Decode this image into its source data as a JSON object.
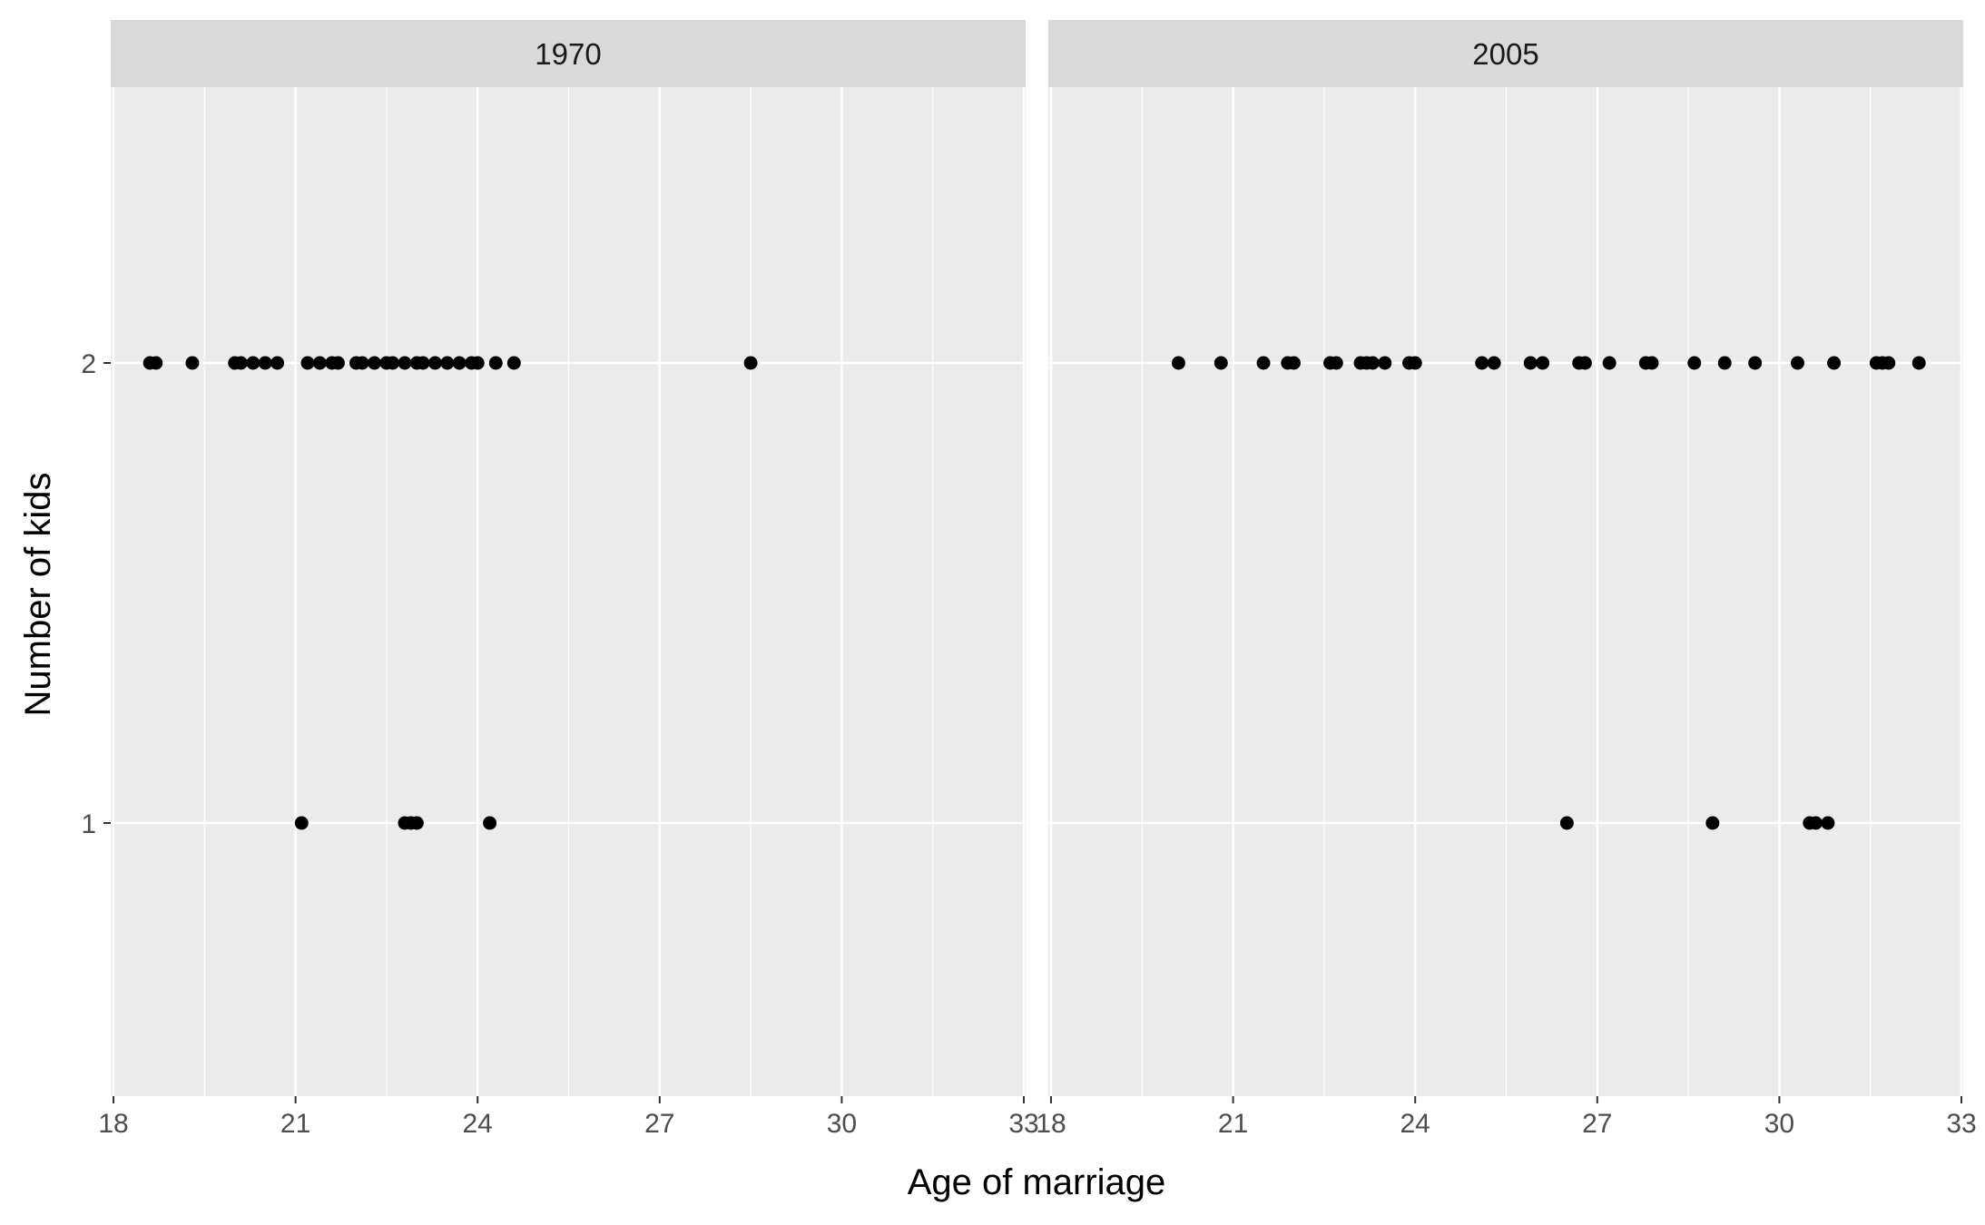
{
  "chart_data": {
    "type": "scatter",
    "xlabel": "Age of marriage",
    "ylabel": "Number of kids",
    "xlim": [
      18,
      33
    ],
    "x_ticks": [
      18,
      21,
      24,
      27,
      30,
      33
    ],
    "y_ticks": [
      1,
      2
    ],
    "ylim": [
      0.4,
      2.6
    ],
    "grid": true,
    "colors": {
      "panel_bg": "#EBEBEB",
      "strip_bg": "#D9D9D9",
      "grid": "#FFFFFF",
      "point": "#000000"
    },
    "facets": [
      {
        "label": "1970",
        "points": [
          {
            "x": 18.6,
            "y": 2
          },
          {
            "x": 18.7,
            "y": 2
          },
          {
            "x": 19.3,
            "y": 2
          },
          {
            "x": 20.0,
            "y": 2
          },
          {
            "x": 20.1,
            "y": 2
          },
          {
            "x": 20.3,
            "y": 2
          },
          {
            "x": 20.5,
            "y": 2
          },
          {
            "x": 20.7,
            "y": 2
          },
          {
            "x": 21.2,
            "y": 2
          },
          {
            "x": 21.4,
            "y": 2
          },
          {
            "x": 21.6,
            "y": 2
          },
          {
            "x": 21.7,
            "y": 2
          },
          {
            "x": 22.0,
            "y": 2
          },
          {
            "x": 22.1,
            "y": 2
          },
          {
            "x": 22.3,
            "y": 2
          },
          {
            "x": 22.5,
            "y": 2
          },
          {
            "x": 22.6,
            "y": 2
          },
          {
            "x": 22.8,
            "y": 2
          },
          {
            "x": 23.0,
            "y": 2
          },
          {
            "x": 23.1,
            "y": 2
          },
          {
            "x": 23.3,
            "y": 2
          },
          {
            "x": 23.5,
            "y": 2
          },
          {
            "x": 23.7,
            "y": 2
          },
          {
            "x": 23.9,
            "y": 2
          },
          {
            "x": 24.0,
            "y": 2
          },
          {
            "x": 24.3,
            "y": 2
          },
          {
            "x": 24.6,
            "y": 2
          },
          {
            "x": 28.5,
            "y": 2
          },
          {
            "x": 21.1,
            "y": 1
          },
          {
            "x": 22.8,
            "y": 1
          },
          {
            "x": 22.9,
            "y": 1
          },
          {
            "x": 23.0,
            "y": 1
          },
          {
            "x": 24.2,
            "y": 1
          }
        ]
      },
      {
        "label": "2005",
        "points": [
          {
            "x": 20.1,
            "y": 2
          },
          {
            "x": 20.8,
            "y": 2
          },
          {
            "x": 21.5,
            "y": 2
          },
          {
            "x": 21.9,
            "y": 2
          },
          {
            "x": 22.0,
            "y": 2
          },
          {
            "x": 22.6,
            "y": 2
          },
          {
            "x": 22.7,
            "y": 2
          },
          {
            "x": 23.1,
            "y": 2
          },
          {
            "x": 23.2,
            "y": 2
          },
          {
            "x": 23.3,
            "y": 2
          },
          {
            "x": 23.5,
            "y": 2
          },
          {
            "x": 23.9,
            "y": 2
          },
          {
            "x": 24.0,
            "y": 2
          },
          {
            "x": 25.1,
            "y": 2
          },
          {
            "x": 25.3,
            "y": 2
          },
          {
            "x": 25.9,
            "y": 2
          },
          {
            "x": 26.1,
            "y": 2
          },
          {
            "x": 26.7,
            "y": 2
          },
          {
            "x": 26.8,
            "y": 2
          },
          {
            "x": 27.2,
            "y": 2
          },
          {
            "x": 27.8,
            "y": 2
          },
          {
            "x": 27.9,
            "y": 2
          },
          {
            "x": 28.6,
            "y": 2
          },
          {
            "x": 29.1,
            "y": 2
          },
          {
            "x": 29.6,
            "y": 2
          },
          {
            "x": 30.3,
            "y": 2
          },
          {
            "x": 30.9,
            "y": 2
          },
          {
            "x": 31.6,
            "y": 2
          },
          {
            "x": 31.7,
            "y": 2
          },
          {
            "x": 31.8,
            "y": 2
          },
          {
            "x": 32.3,
            "y": 2
          },
          {
            "x": 26.5,
            "y": 1
          },
          {
            "x": 28.9,
            "y": 1
          },
          {
            "x": 30.5,
            "y": 1
          },
          {
            "x": 30.6,
            "y": 1
          },
          {
            "x": 30.8,
            "y": 1
          }
        ]
      }
    ]
  }
}
